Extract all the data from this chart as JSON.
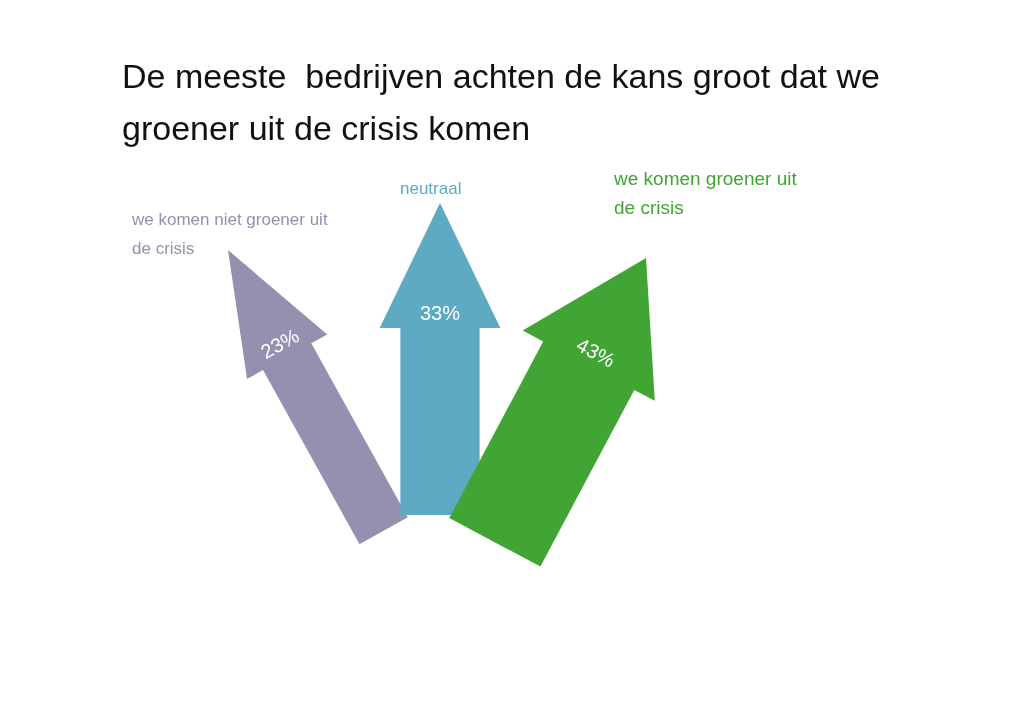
{
  "chart_data": {
    "type": "other",
    "title": "De meeste  bedrijven achten de kans groot dat we groener uit de crisis komen",
    "categories": [
      "we komen niet groener uit de crisis",
      "neutraal",
      "we komen groener uit de crisis"
    ],
    "values": [
      23,
      33,
      43
    ],
    "value_labels": [
      "23%",
      "33%",
      "43%"
    ],
    "colors": [
      "#9490b0",
      "#5eaac2",
      "#41a535"
    ]
  }
}
